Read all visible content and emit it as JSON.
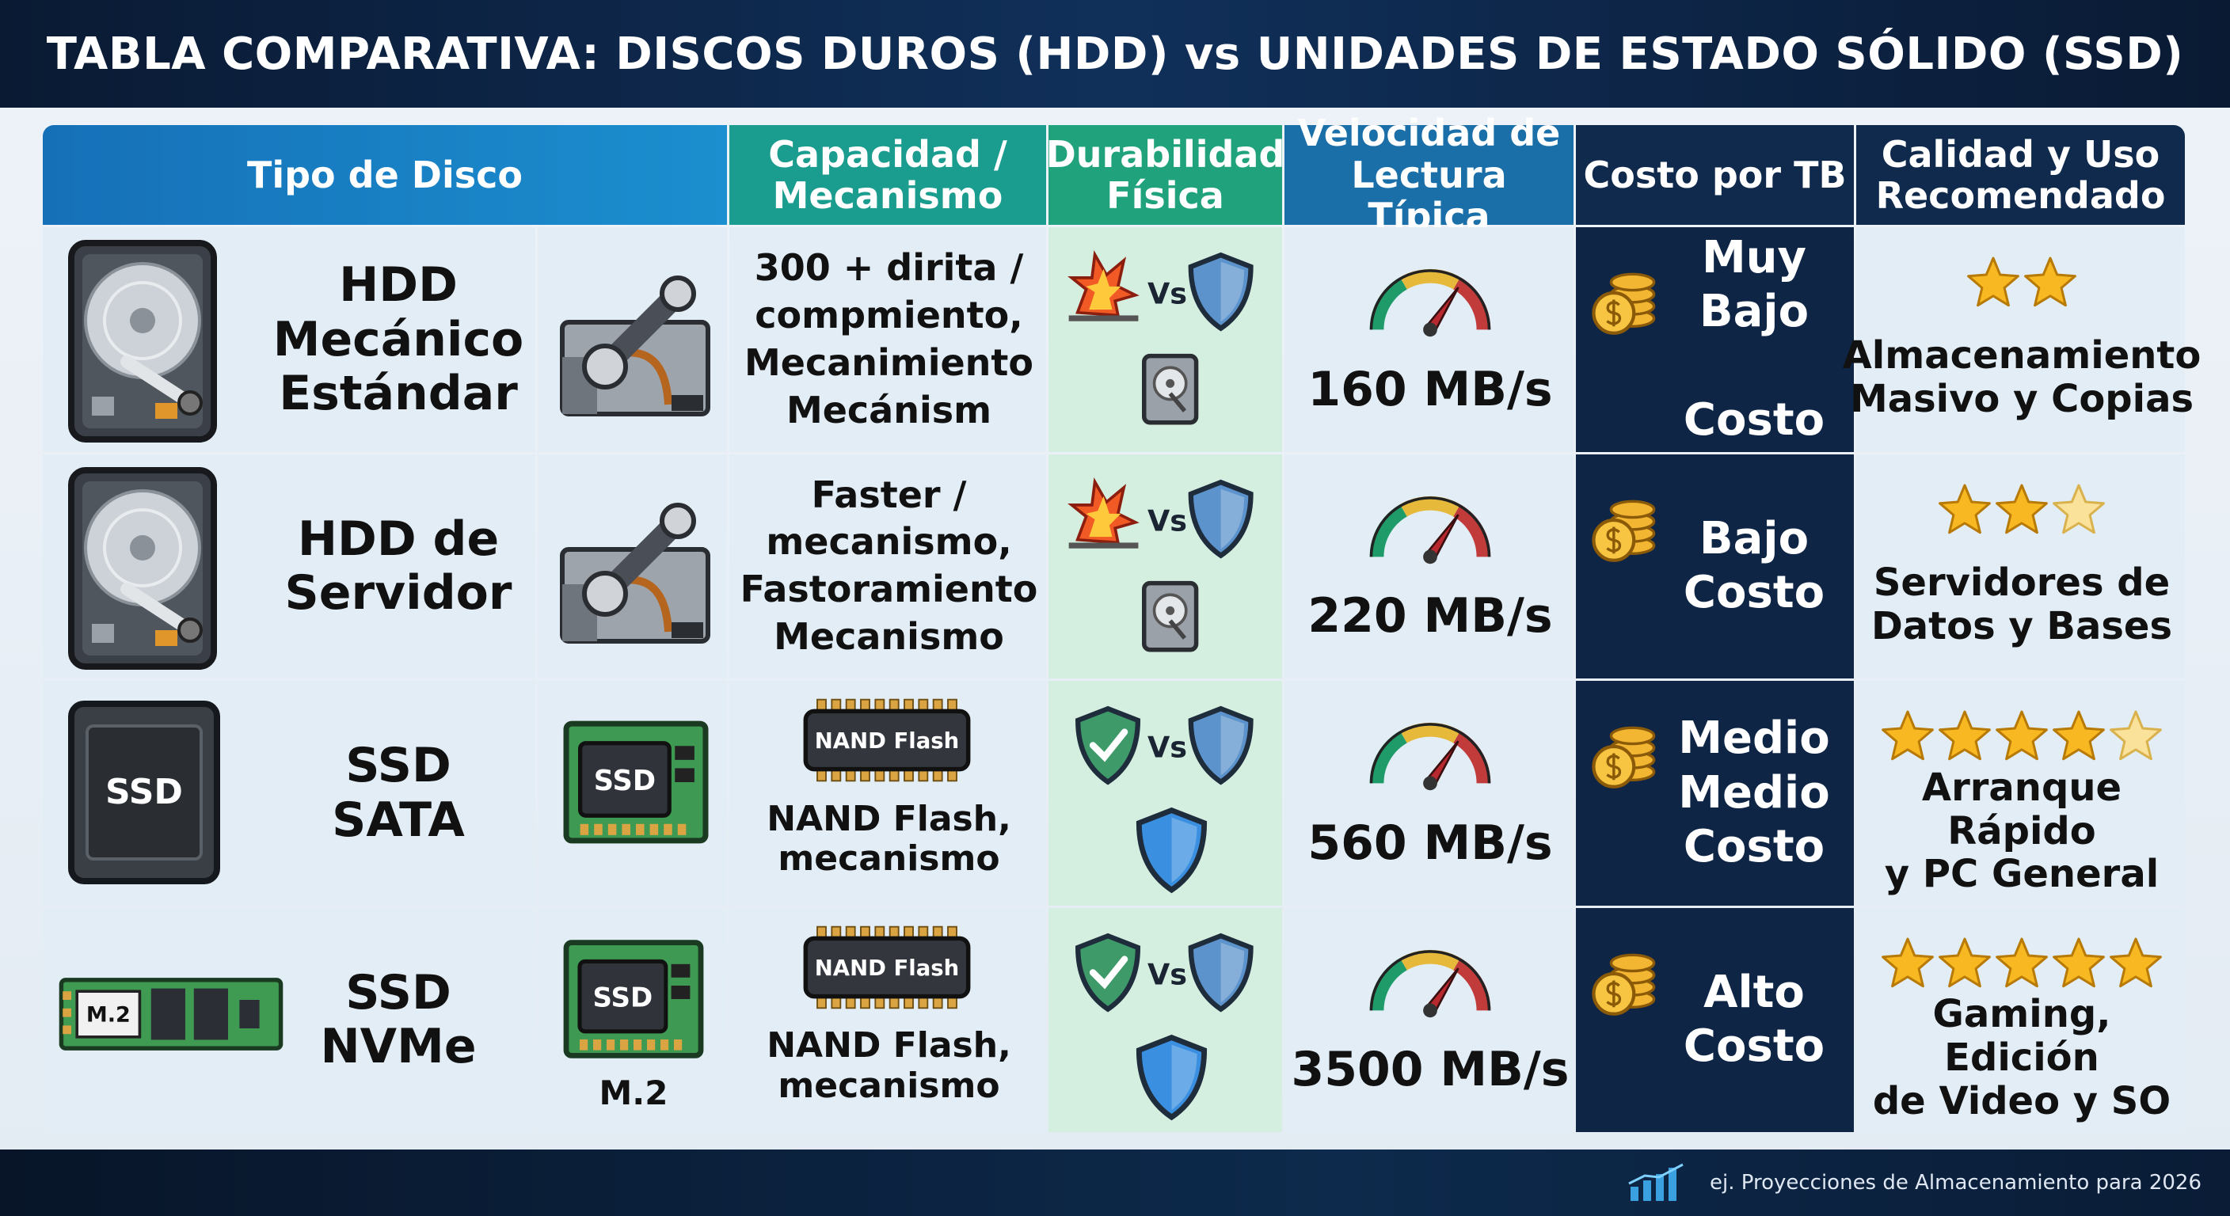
{
  "header": {
    "title": "TABLA COMPARATIVA: DISCOS DUROS (HDD) vs UNIDADES DE ESTADO SÓLIDO (SSD)"
  },
  "table": {
    "headers": [
      "Tipo de Disco",
      "Capacidad /\nMecanismo",
      "Durabilidad\nFísica",
      "Velocidad de\nLectura Típica",
      "Costo por TB",
      "Calidad y Uso\nRecomendado"
    ],
    "rows": [
      {
        "name": "HDD\nMecánico\nEstándar",
        "kind": "hdd",
        "capacity": "300 + dirita /\ncompmiento,\nMecanimiento\nMecánism",
        "durability_label": "Vs",
        "speed": "160 MB/s",
        "cost": "Muy Bajo\n\nCosto",
        "rating": 2,
        "use": "Almacenamiento\nMasivo y Copias"
      },
      {
        "name": "HDD de\nServidor",
        "kind": "hdd",
        "capacity": "Faster /\nmecanismo,\nFastoramiento\nMecanismo",
        "durability_label": "Vs",
        "speed": "220 MB/s",
        "cost": "Bajo\nCosto",
        "rating": 2.5,
        "use": "Servidores de\nDatos y Bases"
      },
      {
        "name": "SSD\nSATA",
        "kind": "ssd",
        "disk_label": "SSD",
        "module_label": "SSD",
        "chip_label": "NAND Flash",
        "capacity": "NAND Flash,\nmecanismo",
        "durability_label": "Vs",
        "speed": "560 MB/s",
        "cost": "Medio\nMedio\nCosto",
        "rating": 4.5,
        "use": "Arranque Rápido\ny PC General"
      },
      {
        "name": "SSD\nNVMe",
        "kind": "nvme",
        "disk_label": "M.2",
        "module_label": "SSD",
        "module_caption": "M.2",
        "chip_label": "NAND Flash",
        "capacity": "NAND Flash,\nmecanismo",
        "durability_label": "Vs",
        "speed": "3500 MB/s",
        "cost": "Alto\nCosto",
        "rating": 5,
        "use": "Gaming, Edición\nde Video y SO"
      }
    ]
  },
  "footer": {
    "note": "ej. Proyecciones de Almacenamiento para 2026"
  }
}
